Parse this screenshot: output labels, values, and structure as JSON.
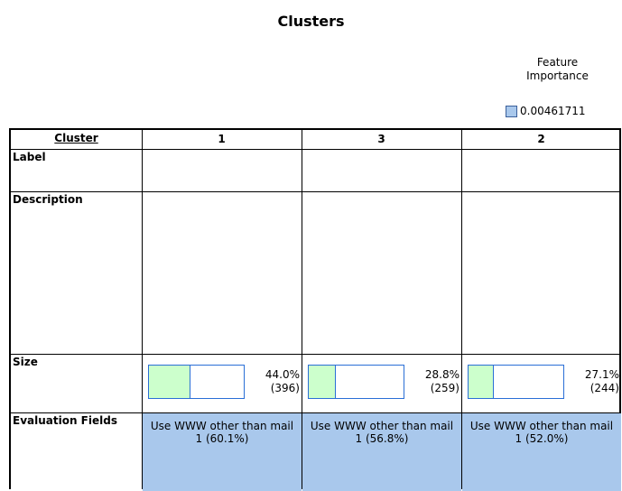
{
  "title": "Clusters",
  "legend": {
    "title": "Feature Importance",
    "value_label": "0.00461711"
  },
  "table": {
    "row_labels": [
      "Cluster",
      "Label",
      "Description",
      "Size",
      "Evaluation Fields"
    ],
    "clusters": [
      "1",
      "3",
      "2"
    ],
    "size": {
      "values": [
        44.0,
        28.8,
        27.1
      ],
      "value_labels": [
        "44.0%",
        "28.8%",
        "27.1%"
      ],
      "counts": [
        "(396)",
        "(259)",
        "(244)"
      ]
    },
    "evaluation": {
      "fields": [
        "Use WWW other than mail",
        "Use WWW other than mail",
        "Use WWW other than mail"
      ],
      "values": [
        "1 (60.1%)",
        "1 (56.8%)",
        "1 (52.0%)"
      ]
    }
  }
}
